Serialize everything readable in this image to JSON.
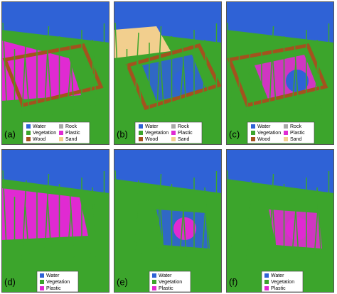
{
  "panels": [
    {
      "label": "(a)",
      "legend": [
        {
          "name": "Water",
          "color": "#2f62d6"
        },
        {
          "name": "Vegetation",
          "color": "#3ca52c"
        },
        {
          "name": "Wood",
          "color": "#a3521e"
        },
        {
          "name": "Rock",
          "color": "#a8a8a8"
        },
        {
          "name": "Plastic",
          "color": "#e02ad2"
        },
        {
          "name": "Sand",
          "color": "#f2cf8e"
        }
      ]
    },
    {
      "label": "(b)",
      "legend": [
        {
          "name": "Water",
          "color": "#2f62d6"
        },
        {
          "name": "Vegetation",
          "color": "#3ca52c"
        },
        {
          "name": "Wood",
          "color": "#a3521e"
        },
        {
          "name": "Rock",
          "color": "#a8a8a8"
        },
        {
          "name": "Plastic",
          "color": "#e02ad2"
        },
        {
          "name": "Sand",
          "color": "#f2cf8e"
        }
      ]
    },
    {
      "label": "(c)",
      "legend": [
        {
          "name": "Water",
          "color": "#2f62d6"
        },
        {
          "name": "Vegetation",
          "color": "#3ca52c"
        },
        {
          "name": "Wood",
          "color": "#a3521e"
        },
        {
          "name": "Rock",
          "color": "#a8a8a8"
        },
        {
          "name": "Plastic",
          "color": "#e02ad2"
        },
        {
          "name": "Sand",
          "color": "#f2cf8e"
        }
      ]
    },
    {
      "label": "(d)",
      "legend": [
        {
          "name": "Water",
          "color": "#2f62d6"
        },
        {
          "name": "Vegetation",
          "color": "#3ca52c"
        },
        {
          "name": "Plastic",
          "color": "#e02ad2"
        }
      ]
    },
    {
      "label": "(e)",
      "legend": [
        {
          "name": "Water",
          "color": "#2f62d6"
        },
        {
          "name": "Vegetation",
          "color": "#3ca52c"
        },
        {
          "name": "Plastic",
          "color": "#e02ad2"
        }
      ]
    },
    {
      "label": "(f)",
      "legend": [
        {
          "name": "Water",
          "color": "#2f62d6"
        },
        {
          "name": "Vegetation",
          "color": "#3ca52c"
        },
        {
          "name": "Plastic",
          "color": "#e02ad2"
        }
      ]
    }
  ]
}
